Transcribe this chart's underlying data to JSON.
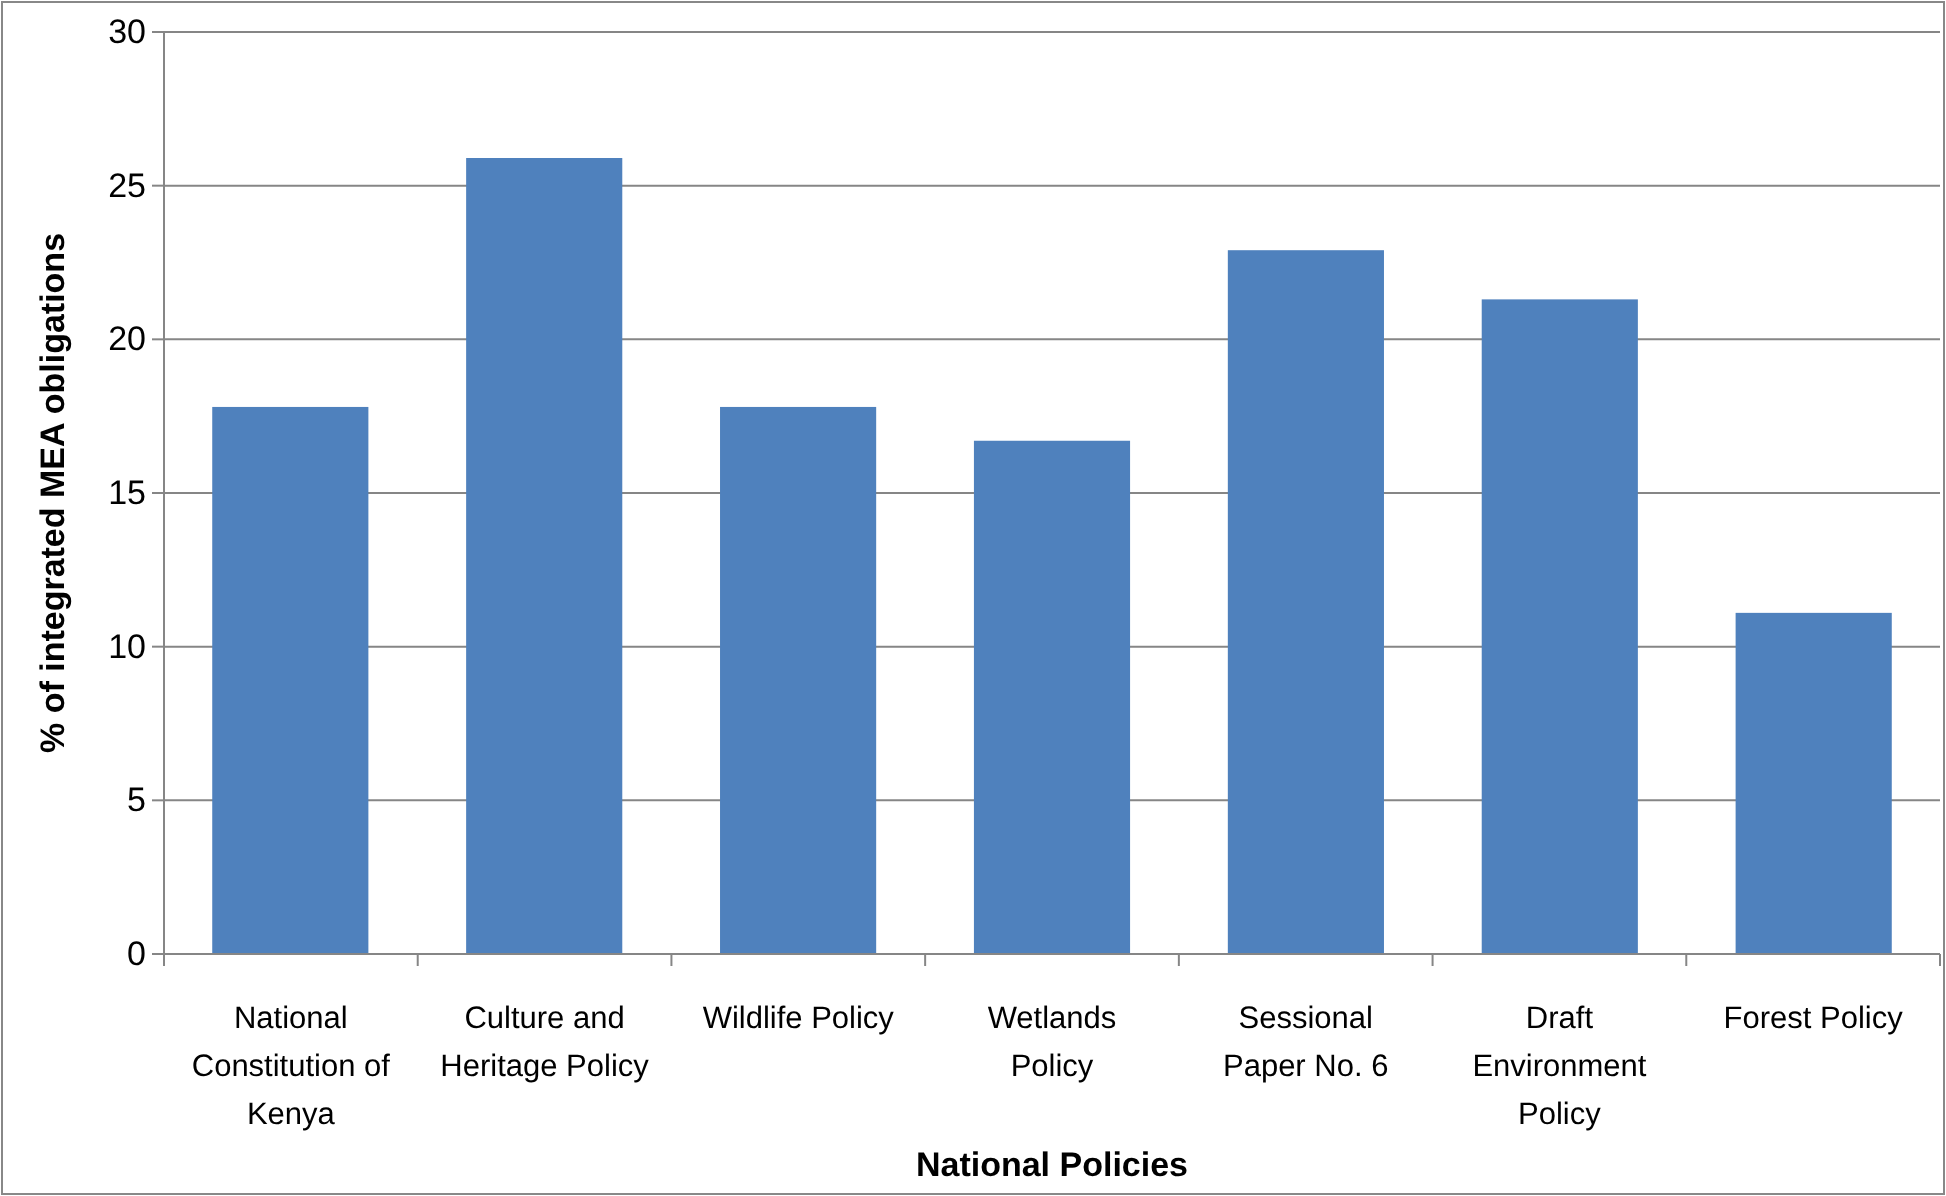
{
  "chart_data": {
    "type": "bar",
    "xlabel": "National Policies",
    "ylabel": "% of integrated MEA obligations",
    "categories": [
      "National Constitution of Kenya",
      "Culture and Heritage Policy",
      "Wildlife Policy",
      "Wetlands Policy",
      "Sessional Paper No. 6",
      "Draft Environment Policy",
      "Forest Policy"
    ],
    "values": [
      17.8,
      25.9,
      17.8,
      16.7,
      22.9,
      21.3,
      11.1
    ],
    "color": "#4f81bd",
    "ylim": [
      0,
      30
    ],
    "yticks": [
      0,
      5,
      10,
      15,
      20,
      25,
      30
    ],
    "grid": "y"
  }
}
